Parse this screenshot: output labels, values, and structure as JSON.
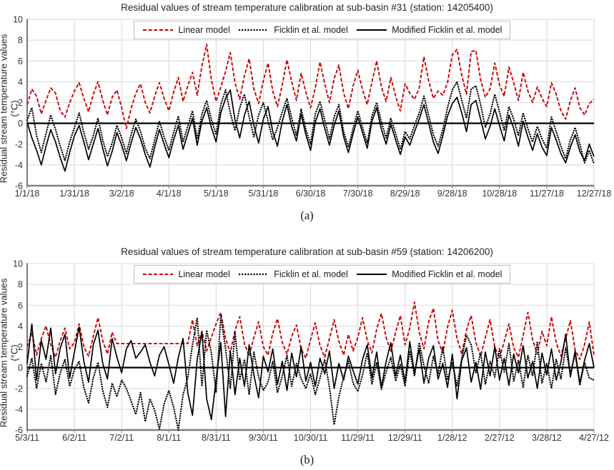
{
  "colors": {
    "linear_model": "#cc0000",
    "ficklin_model": "#000000",
    "modified_ficklin_model": "#000000",
    "grid": "#d9d9d9",
    "axis": "#808080",
    "y_axis_line": "#404040",
    "zero_line": "#000000",
    "legend_border": "#bfbfbf",
    "text": "#333333"
  },
  "captions": {
    "a": "(a)",
    "b": "(b)"
  },
  "chart_data": [
    {
      "type": "line",
      "title": "Residual values of stream temperature calibration at sub-basin #31 (station: 14205400)",
      "xlabel": "",
      "ylabel": "Residual stream temperature values (°C)",
      "ylim": [
        -6,
        10
      ],
      "yticks": [
        10,
        8,
        6,
        4,
        2,
        0,
        -2,
        -4,
        -6
      ],
      "grid": true,
      "legend_position": "top-center-inside",
      "x_tick_labels": [
        "1/1/18",
        "1/31/18",
        "3/2/18",
        "4/1/18",
        "5/1/18",
        "5/31/18",
        "6/30/18",
        "7/30/18",
        "8/29/18",
        "9/28/18",
        "10/28/18",
        "11/27/18",
        "12/27/18"
      ],
      "x_day_span": 360,
      "sample_interval_days": 3,
      "series": [
        {
          "name": "Linear model",
          "style": "dashed",
          "color": "#cc0000",
          "values": [
            1.8,
            3.3,
            2.6,
            0.9,
            2.2,
            3.4,
            2.9,
            1.2,
            0.6,
            2.0,
            3.1,
            3.9,
            2.4,
            1.1,
            2.8,
            4.0,
            2.2,
            0.8,
            2.5,
            3.2,
            1.5,
            -0.5,
            1.4,
            2.9,
            3.8,
            2.0,
            1.0,
            2.6,
            3.9,
            2.4,
            1.2,
            3.0,
            4.4,
            2.1,
            3.6,
            4.9,
            2.7,
            5.5,
            7.6,
            4.2,
            2.1,
            3.5,
            5.0,
            6.8,
            3.9,
            2.3,
            4.6,
            6.2,
            3.3,
            1.9,
            4.1,
            5.8,
            3.1,
            1.6,
            3.7,
            6.1,
            4.0,
            2.2,
            4.8,
            3.0,
            1.5,
            3.4,
            5.9,
            3.8,
            2.0,
            4.3,
            5.6,
            2.9,
            1.4,
            3.6,
            5.1,
            3.2,
            1.8,
            4.0,
            6.0,
            3.5,
            2.1,
            4.4,
            2.6,
            1.2,
            3.8,
            2.9,
            2.3,
            3.4,
            6.4,
            4.1,
            2.4,
            3.1,
            2.7,
            3.9,
            6.6,
            7.1,
            4.6,
            2.8,
            6.9,
            7.0,
            4.2,
            2.5,
            3.3,
            5.8,
            3.7,
            2.6,
            5.4,
            3.9,
            2.2,
            4.9,
            3.1,
            2.0,
            3.5,
            2.4,
            1.6,
            3.9,
            2.8,
            1.2,
            0.4,
            2.2,
            3.4,
            1.5,
            0.8,
            1.9,
            2.3
          ]
        },
        {
          "name": "Ficklin et al. model",
          "style": "dotted",
          "color": "#000000",
          "values": [
            0.3,
            1.5,
            -1.2,
            -2.8,
            -1.0,
            0.8,
            -0.6,
            -2.2,
            -3.6,
            -1.8,
            -0.4,
            1.0,
            -0.9,
            -2.5,
            -1.2,
            0.5,
            -1.6,
            -3.2,
            -1.9,
            -0.2,
            -1.4,
            -2.9,
            -1.1,
            0.4,
            -0.8,
            -2.4,
            -3.4,
            -1.6,
            0.2,
            -1.3,
            -2.6,
            -0.9,
            0.7,
            -1.8,
            -0.3,
            1.2,
            -1.5,
            0.9,
            2.2,
            0.4,
            -1.1,
            1.8,
            3.2,
            1.0,
            -0.7,
            1.5,
            2.8,
            0.6,
            -1.3,
            0.8,
            2.0,
            0.2,
            -1.6,
            -0.4,
            1.1,
            2.4,
            0.5,
            -1.2,
            1.4,
            -0.6,
            -2.0,
            0.9,
            2.1,
            0.3,
            -1.5,
            0.6,
            1.8,
            -0.8,
            -2.3,
            -0.5,
            1.2,
            -0.4,
            -1.9,
            0.7,
            2.0,
            0.1,
            -1.4,
            0.5,
            -1.0,
            -2.5,
            -0.8,
            -1.5,
            -0.2,
            1.0,
            2.6,
            0.8,
            -1.1,
            -2.2,
            -0.6,
            1.5,
            3.2,
            4.0,
            2.2,
            0.5,
            3.3,
            3.6,
            1.8,
            -0.4,
            0.9,
            2.8,
            1.1,
            -0.7,
            1.6,
            0.4,
            -1.2,
            1.0,
            -0.5,
            -1.8,
            -0.3,
            -1.5,
            -2.4,
            0.6,
            -0.8,
            -2.2,
            -3.4,
            -1.6,
            -0.4,
            -2.0,
            -3.8,
            -2.6,
            -3.9
          ]
        },
        {
          "name": "Modified Ficklin et al. model",
          "style": "solid",
          "color": "#000000",
          "values": [
            0.1,
            -1.4,
            -2.6,
            -4.0,
            -2.2,
            -0.6,
            -1.8,
            -3.3,
            -4.6,
            -2.8,
            -1.2,
            -0.2,
            -1.8,
            -3.5,
            -2.0,
            -0.5,
            -2.4,
            -4.1,
            -2.7,
            -0.9,
            -2.1,
            -3.6,
            -1.9,
            -0.4,
            -1.5,
            -3.0,
            -4.2,
            -2.3,
            -0.6,
            -2.0,
            -3.3,
            -1.6,
            -0.2,
            -2.5,
            -1.0,
            0.5,
            -2.1,
            0.2,
            1.5,
            -0.4,
            -1.8,
            1.0,
            2.4,
            3.2,
            0.3,
            -1.4,
            0.8,
            2.1,
            -0.2,
            -1.9,
            0.4,
            1.6,
            -0.8,
            -2.2,
            0.2,
            1.8,
            -0.3,
            -1.7,
            0.9,
            -1.1,
            -2.6,
            0.1,
            1.4,
            -0.5,
            -2.1,
            -0.2,
            1.2,
            -1.3,
            -2.8,
            -1.0,
            0.6,
            -0.9,
            -2.4,
            0.2,
            1.5,
            -0.6,
            -2.0,
            -0.1,
            -1.6,
            -3.0,
            -1.3,
            -2.1,
            -0.8,
            0.4,
            1.8,
            0.0,
            -1.8,
            -2.9,
            -1.2,
            0.7,
            1.9,
            2.5,
            1.0,
            -0.8,
            1.8,
            2.2,
            0.4,
            -1.5,
            -0.3,
            1.4,
            -0.2,
            -1.7,
            0.8,
            -0.5,
            -2.2,
            0.2,
            -1.3,
            -2.6,
            -1.0,
            -2.3,
            -3.1,
            -0.4,
            -1.6,
            -2.9,
            -3.8,
            -2.3,
            -1.1,
            -2.7,
            -3.6,
            -2.0,
            -3.2
          ]
        }
      ]
    },
    {
      "type": "line",
      "title": "Residual values of stream temperature calibration at sub-basin #59 (station: 14206200)",
      "xlabel": "",
      "ylabel": "Residual stream temperature values (°C)",
      "ylim": [
        -6,
        10
      ],
      "yticks": [
        10,
        8,
        6,
        4,
        2,
        0,
        -2,
        -4,
        -6
      ],
      "grid": true,
      "legend_position": "top-center-inside",
      "x_tick_labels": [
        "5/3/11",
        "6/2/11",
        "7/2/11",
        "8/1/11",
        "8/31/11",
        "9/30/11",
        "10/30/11",
        "11/29/11",
        "12/29/11",
        "1/28/12",
        "2/27/12",
        "3/28/12",
        "4/27/12"
      ],
      "x_day_span": 360,
      "sample_interval_days": 3,
      "series": [
        {
          "name": "Linear model",
          "style": "dashed",
          "color": "#cc0000",
          "values": [
            2.0,
            3.4,
            1.2,
            2.8,
            4.0,
            2.2,
            1.0,
            2.6,
            3.8,
            1.8,
            2.4,
            4.2,
            2.0,
            1.1,
            3.0,
            4.8,
            2.6,
            1.3,
            3.4,
            2.3,
            2.3,
            2.3,
            2.3,
            2.3,
            2.3,
            2.3,
            2.3,
            2.3,
            2.3,
            2.3,
            2.3,
            2.3,
            2.3,
            2.3,
            2.3,
            4.6,
            2.1,
            3.5,
            1.6,
            2.9,
            4.2,
            5.3,
            2.8,
            1.4,
            3.6,
            4.9,
            2.3,
            1.1,
            2.9,
            4.4,
            2.0,
            1.2,
            3.3,
            4.7,
            2.4,
            1.3,
            3.0,
            4.1,
            1.8,
            0.9,
            2.7,
            4.3,
            2.1,
            1.0,
            2.8,
            4.6,
            2.5,
            1.2,
            3.2,
            1.6,
            2.9,
            4.8,
            2.6,
            1.4,
            3.7,
            5.2,
            2.9,
            1.5,
            3.4,
            5.0,
            2.2,
            3.8,
            6.3,
            3.4,
            1.8,
            4.4,
            5.7,
            2.6,
            1.4,
            3.9,
            5.5,
            2.8,
            1.3,
            3.6,
            5.0,
            2.4,
            1.1,
            2.9,
            4.6,
            2.0,
            0.9,
            2.5,
            4.2,
            1.9,
            1.0,
            3.1,
            5.3,
            2.7,
            1.3,
            3.5,
            2.1,
            4.9,
            2.4,
            1.1,
            2.8,
            4.5,
            1.7,
            0.8,
            2.2,
            4.4,
            1.2
          ]
        },
        {
          "name": "Ficklin et al. model",
          "style": "dotted",
          "color": "#000000",
          "values": [
            -0.8,
            0.9,
            -2.0,
            0.4,
            -1.4,
            1.2,
            -2.6,
            -0.5,
            0.8,
            -1.8,
            -0.2,
            0.6,
            -1.9,
            -3.4,
            -1.0,
            0.5,
            -2.2,
            -3.8,
            -1.5,
            -2.8,
            -1.2,
            -2.0,
            -3.2,
            -4.5,
            -2.4,
            -5.2,
            -3.0,
            -4.1,
            -5.9,
            -3.5,
            -2.2,
            -3.8,
            -6.0,
            -2.6,
            -1.0,
            2.2,
            4.8,
            -1.8,
            3.6,
            1.4,
            -2.4,
            5.0,
            1.8,
            -2.0,
            3.4,
            -1.2,
            0.8,
            -2.6,
            1.5,
            -0.9,
            -2.2,
            -1.4,
            0.6,
            -2.4,
            -0.8,
            1.2,
            -1.8,
            0.4,
            -1.1,
            -2.0,
            -0.6,
            -2.6,
            -1.0,
            0.8,
            -1.9,
            -5.5,
            -2.8,
            -0.9,
            0.6,
            -1.5,
            -2.3,
            -0.7,
            1.4,
            -1.6,
            0.5,
            -2.1,
            -0.4,
            1.0,
            -1.3,
            0.3,
            -1.8,
            1.6,
            -0.8,
            2.4,
            0.2,
            -1.5,
            1.1,
            -0.6,
            2.0,
            -1.2,
            0.5,
            -1.8,
            0.9,
            3.1,
            2.2,
            -0.5,
            1.4,
            -1.6,
            0.6,
            -0.9,
            1.8,
            -0.4,
            2.3,
            -1.3,
            0.7,
            -1.9,
            1.2,
            -0.8,
            2.5,
            -1.5,
            0.4,
            -2.0,
            0.8,
            -1.1,
            1.9,
            -0.6,
            1.3,
            -1.7,
            0.5,
            -1.0,
            -1.2
          ]
        },
        {
          "name": "Modified Ficklin et al. model",
          "style": "solid",
          "color": "#000000",
          "values": [
            0.4,
            4.2,
            -1.2,
            2.6,
            0.8,
            3.8,
            -0.6,
            1.9,
            3.2,
            -1.0,
            1.5,
            3.9,
            0.6,
            -1.4,
            2.2,
            3.6,
            0.4,
            -1.1,
            2.8,
            1.0,
            -0.5,
            1.8,
            2.6,
            0.9,
            1.5,
            2.2,
            0.5,
            -0.8,
            1.2,
            2.0,
            0.3,
            -1.5,
            1.0,
            2.8,
            -2.4,
            -4.6,
            0.8,
            3.4,
            -3.0,
            -5.0,
            -1.2,
            2.4,
            -4.7,
            1.6,
            -2.6,
            0.9,
            -1.8,
            2.2,
            -0.7,
            -2.9,
            1.1,
            -0.4,
            1.8,
            -1.6,
            0.6,
            -2.2,
            1.4,
            -0.9,
            2.0,
            -1.3,
            0.5,
            -1.8,
            0.9,
            -0.6,
            1.6,
            -2.0,
            0.4,
            -1.2,
            1.1,
            -0.3,
            -1.6,
            0.8,
            2.2,
            -1.0,
            1.5,
            -1.9,
            0.6,
            2.4,
            -0.8,
            1.2,
            -1.4,
            2.5,
            -0.6,
            1.8,
            -1.5,
            0.9,
            2.1,
            -1.1,
            0.4,
            -1.9,
            1.3,
            -3.0,
            0.7,
            1.9,
            -1.4,
            0.5,
            -2.1,
            1.5,
            -0.8,
            2.0,
            -1.2,
            0.9,
            -1.7,
            1.3,
            -0.5,
            2.1,
            -1.0,
            0.6,
            -2.0,
            1.4,
            -0.7,
            1.8,
            -1.2,
            0.5,
            3.2,
            -0.9,
            1.6,
            -1.5,
            0.7,
            2.3,
            0.0
          ]
        }
      ]
    }
  ]
}
